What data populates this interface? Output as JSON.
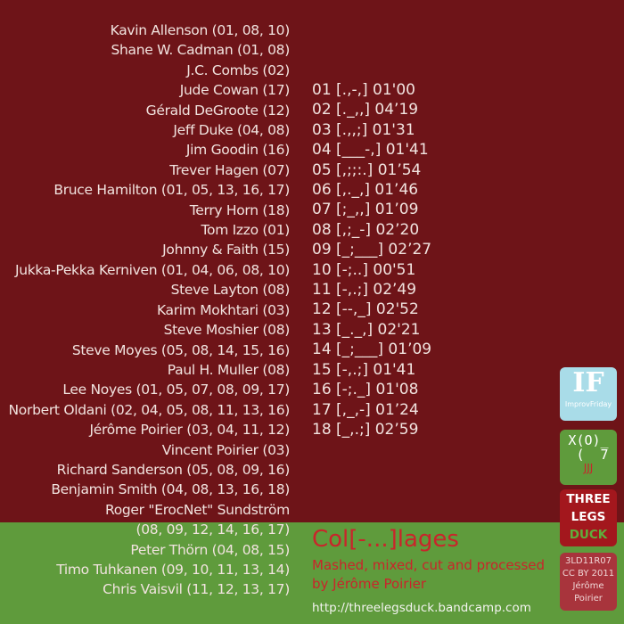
{
  "colors": {
    "background": "#6e1418",
    "band": "#5f9b3c",
    "title": "#c9252b"
  },
  "credits": [
    "Kavin Allenson (01, 08, 10)",
    "Shane W. Cadman (01, 08)",
    "J.C. Combs (02)",
    "Jude Cowan (17)",
    "Gérald DeGroote (12)",
    "Jeff Duke (04, 08)",
    "Jim Goodin (16)",
    "Trever Hagen (07)",
    "Bruce Hamilton (01, 05, 13, 16, 17)",
    "Terry Horn (18)",
    "Tom Izzo (01)",
    "Johnny & Faith (15)",
    "Jukka-Pekka Kerniven (01, 04, 06, 08, 10)",
    "Steve Layton (08)",
    "Karim Mokhtari (03)",
    "Steve Moshier (08)",
    "Steve Moyes (05, 08, 14, 15, 16)",
    "Paul H. Muller (08)",
    "Lee Noyes (01, 05, 07, 08, 09, 17)",
    "Norbert Oldani (02, 04, 05, 08, 11, 13, 16)",
    "Jérôme Poirier (03, 04, 11, 12)",
    "Vincent Poirier (03)",
    "Richard Sanderson (05, 08, 09, 16)",
    "Benjamin Smith (04, 08, 13, 16, 18)",
    "Roger \"ErocNet\" Sundström",
    "(08, 09, 12, 14, 16, 17)",
    "Peter Thörn (04, 08, 15)",
    "Timo Tuhkanen (09, 10, 11, 13, 14)",
    "Chris Vaisvil (11, 12, 13, 17)"
  ],
  "tracks": [
    "01 [.,-,] 01'00",
    "02 [._,,] 04’19",
    "03 [.,,;] 01'31",
    "04 [___-,] 01'41",
    "05 [,;;:.] 01’54",
    "06 [,._,] 01’46",
    "07 [;_,,] 01’09",
    "08 [,;_-] 02’20",
    "09 [_;___] 02’27",
    "10 [-;..] 00'51",
    "11 [-,.;] 02’49",
    "12 [--,_] 02'52",
    "13 [_._,] 02'21",
    "14 [_;___] 01’09",
    "15 [-,.;] 01'41",
    "16 [-;._] 01'08",
    "17 [,_,-] 01’24",
    "18 [_,.;] 02’59"
  ],
  "album": {
    "title": "Col[-...]lages",
    "subtitle": "Mashed, mixed, cut and processed",
    "byline": "by Jérôme Poirier",
    "url": "http://threelegsduck.bandcamp.com"
  },
  "badges": {
    "improvfriday": {
      "logo": "IF",
      "label": "ImprovFriday"
    },
    "duck_face": {
      "face": "X(O)_\n (  7",
      "feet": "JJJ"
    },
    "label": {
      "line1": "THREE",
      "line2": "LEGS",
      "line3": "DUCK"
    },
    "catalog": {
      "code": "3LD11R07",
      "license": "CC BY 2011",
      "name1": "Jérôme",
      "name2": "Poirier"
    }
  }
}
